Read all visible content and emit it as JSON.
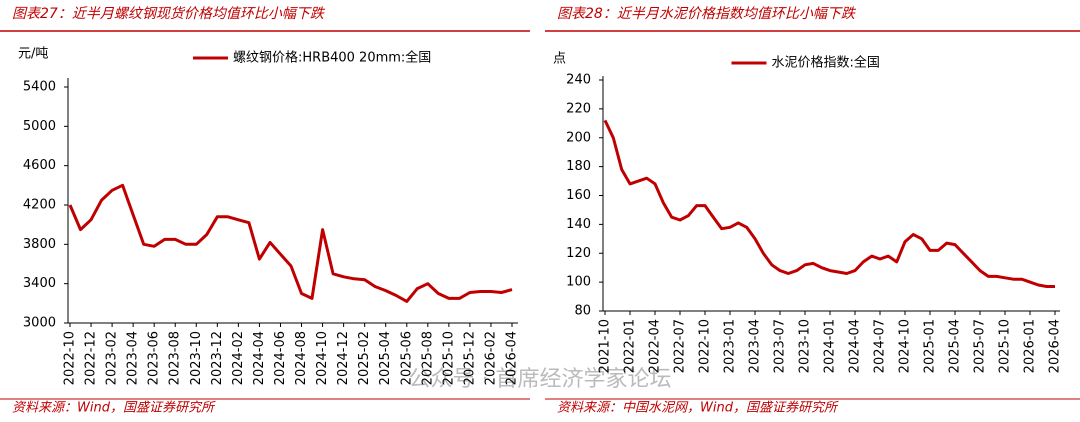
{
  "chart_data": [
    {
      "type": "line",
      "title": "图表27：近半月螺纹钢现货价格均值环比小幅下跌",
      "y_label": "元/吨",
      "source": "资料来源：Wind，国盛证券研究所",
      "categories": [
        "2022-10",
        null,
        "2022-12",
        null,
        "2023-02",
        null,
        "2023-04",
        null,
        "2023-06",
        null,
        "2023-08",
        null,
        "2023-10",
        null,
        "2023-12",
        null,
        "2024-02",
        null,
        "2024-04",
        null,
        "2024-06",
        null,
        "2024-08",
        null,
        "2024-10",
        null,
        "2024-12",
        null,
        "2025-02",
        null,
        "2025-04",
        null,
        "2025-06",
        null,
        "2025-08",
        null,
        "2025-10",
        null,
        "2025-12",
        null,
        "2026-02",
        null,
        "2026-04"
      ],
      "series": [
        {
          "name": "螺纹钢价格:HRB400 20mm:全国",
          "color": "#c00000",
          "values": [
            4200,
            3950,
            4050,
            4250,
            4350,
            4400,
            4100,
            3800,
            3780,
            3850,
            3850,
            3800,
            3800,
            3900,
            4080,
            4080,
            4050,
            4020,
            3650,
            3820,
            3700,
            3580,
            3300,
            3250,
            3950,
            3500,
            3470,
            3450,
            3440,
            3370,
            3330,
            3280,
            3220,
            3350,
            3400,
            3300,
            3250,
            3250,
            3310,
            3320,
            3320,
            3310,
            3340
          ]
        }
      ],
      "ylim": [
        3000,
        5400
      ],
      "yticks": [
        3000,
        3400,
        3800,
        4200,
        4600,
        5000,
        5400
      ],
      "grid": false,
      "legend": "top"
    },
    {
      "type": "line",
      "title": "图表28：近半月水泥价格指数均值环比小幅下跌",
      "y_label": "点",
      "source": "资料来源：中国水泥网，Wind，国盛证券研究所",
      "categories": [
        "2021-10",
        null,
        null,
        "2022-01",
        null,
        null,
        "2022-04",
        null,
        null,
        "2022-07",
        null,
        null,
        "2022-10",
        null,
        null,
        "2023-01",
        null,
        null,
        "2023-04",
        null,
        null,
        "2023-07",
        null,
        null,
        "2023-10",
        null,
        null,
        "2024-01",
        null,
        null,
        "2024-04",
        null,
        null,
        "2024-07",
        null,
        null,
        "2024-10",
        null,
        null,
        "2025-01",
        null,
        null,
        "2025-04",
        null,
        null,
        "2025-07",
        null,
        null,
        "2025-10",
        null,
        null,
        "2026-01",
        null,
        null,
        "2026-04"
      ],
      "series": [
        {
          "name": "水泥价格指数:全国",
          "color": "#c00000",
          "values": [
            212,
            200,
            178,
            168,
            170,
            172,
            168,
            155,
            145,
            143,
            146,
            153,
            153,
            145,
            137,
            138,
            141,
            138,
            130,
            120,
            112,
            108,
            106,
            108,
            112,
            113,
            110,
            108,
            107,
            106,
            108,
            114,
            118,
            116,
            118,
            114,
            128,
            133,
            130,
            122,
            122,
            127,
            126,
            120,
            114,
            108,
            104,
            104,
            103,
            102,
            102,
            100,
            98,
            97,
            97
          ]
        }
      ],
      "ylim": [
        80,
        240
      ],
      "yticks": [
        80,
        100,
        120,
        140,
        160,
        180,
        200,
        220,
        240
      ],
      "grid": false,
      "legend": "top"
    }
  ],
  "watermark": "公众号 · 首席经济学家论坛"
}
